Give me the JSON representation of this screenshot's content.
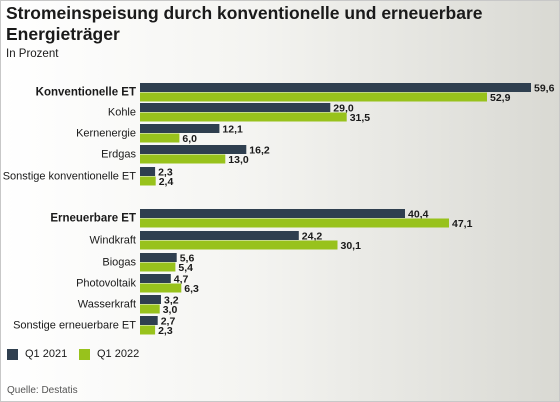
{
  "title": "Stromeinspeisung durch konventionelle und erneuerbare Energieträger",
  "subtitle": "In Prozent",
  "source": "Quelle: Destatis",
  "colors": {
    "q1_2021": "#2f3f4f",
    "q1_2022": "#98c21c"
  },
  "chart_data": {
    "type": "bar",
    "orientation": "horizontal",
    "title": "Stromeinspeisung durch konventionelle und erneuerbare Energieträger",
    "subtitle": "In Prozent",
    "categories": [
      "Konventionelle ET",
      "Kohle",
      "Kernenergie",
      "Erdgas",
      "Sonstige konventionelle ET",
      "Erneuerbare ET",
      "Windkraft",
      "Biogas",
      "Photovoltaik",
      "Wasserkraft",
      "Sonstige erneuerbare ET"
    ],
    "bold_categories": [
      "Konventionelle ET",
      "Erneuerbare ET"
    ],
    "groups": [
      {
        "name": "Konventionelle ET",
        "members": [
          "Kohle",
          "Kernenergie",
          "Erdgas",
          "Sonstige konventionelle ET"
        ]
      },
      {
        "name": "Erneuerbare ET",
        "members": [
          "Windkraft",
          "Biogas",
          "Photovoltaik",
          "Wasserkraft",
          "Sonstige erneuerbare ET"
        ]
      }
    ],
    "series": [
      {
        "name": "Q1 2021",
        "values": [
          59.6,
          29.0,
          12.1,
          16.2,
          2.3,
          40.4,
          24.2,
          5.6,
          4.7,
          3.2,
          2.7
        ],
        "labels": [
          "59,6",
          "29,0",
          "12,1",
          "16,2",
          "2,3",
          "40,4",
          "24,2",
          "5,6",
          "4,7",
          "3,2",
          "2,7"
        ]
      },
      {
        "name": "Q1 2022",
        "values": [
          52.9,
          31.5,
          6.0,
          13.0,
          2.4,
          47.1,
          30.1,
          5.4,
          6.3,
          3.0,
          2.3
        ],
        "labels": [
          "52,9",
          "31,5",
          "6,0",
          "13,0",
          "2,4",
          "47,1",
          "30,1",
          "5,4",
          "6,3",
          "3,0",
          "2,3"
        ]
      }
    ],
    "xlim": [
      0,
      60
    ],
    "grid": false,
    "legend_position": "bottom-left"
  }
}
